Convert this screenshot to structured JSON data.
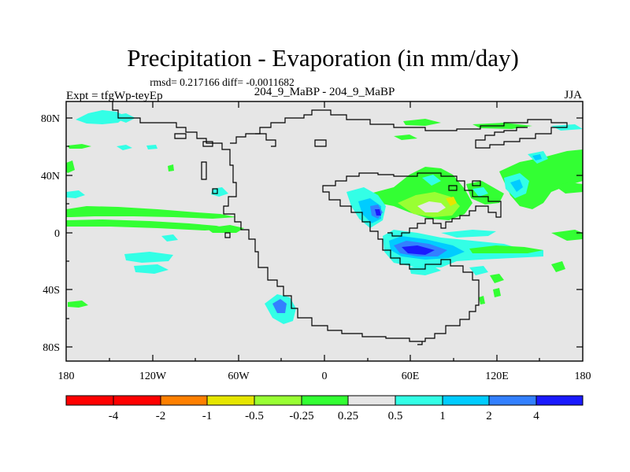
{
  "chart_data": {
    "type": "heatmap",
    "title": "Precipitation - Evaporation (in mm/day)",
    "stats": "rmsd= 0.217166 diff= -0.0011682",
    "left_label": "Expt = tfgWp-teyEp",
    "center_label": "204_9_MaBP - 204_9_MaBP",
    "right_label": "JJA",
    "x_ticks": [
      "180",
      "120W",
      "60W",
      "0",
      "60E",
      "120E",
      "180"
    ],
    "y_ticks": [
      "80N",
      "40N",
      "0",
      "40S",
      "80S"
    ],
    "lon_range": [
      -180,
      180
    ],
    "lat_range": [
      -90,
      90
    ],
    "colorbar": {
      "labels": [
        "-4",
        "-2",
        "-1",
        "-0.5",
        "-0.25",
        "0.25",
        "0.5",
        "1",
        "2",
        "4"
      ],
      "colors": [
        "#ff0000",
        "#ff8000",
        "#e6e600",
        "#99ff33",
        "#33ff33",
        "#e6e6e6",
        "#33ffe6",
        "#00ccff",
        "#3380ff",
        "#1a1aff",
        "#8019e6"
      ]
    },
    "background_color": "#e6e6e6",
    "coastline_color": "#000000"
  }
}
